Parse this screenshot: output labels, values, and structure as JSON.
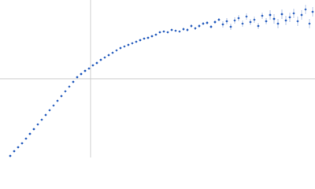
{
  "chart_data": {
    "type": "scatter",
    "color": "#3b6cc4",
    "error_color": "#a8bde3",
    "xlim": [
      -115,
      285
    ],
    "ylim": [
      -100,
      100
    ],
    "x": [
      -102,
      -97,
      -92,
      -87,
      -82,
      -77,
      -72,
      -67,
      -62,
      -57,
      -52,
      -47,
      -42,
      -37,
      -32,
      -27,
      -22,
      -17,
      -12,
      -7,
      -2,
      3,
      8,
      13,
      18,
      23,
      28,
      33,
      38,
      43,
      48,
      53,
      58,
      63,
      68,
      73,
      78,
      83,
      88,
      93,
      98,
      103,
      108,
      113,
      118,
      123,
      128,
      133,
      138,
      143,
      148,
      153,
      158,
      163,
      168,
      173,
      178,
      183,
      188,
      193,
      198,
      203,
      208,
      213,
      218,
      223,
      228,
      233,
      238,
      243,
      248,
      253,
      258,
      263,
      268,
      273,
      278,
      282
    ],
    "values": [
      -98,
      -92,
      -87,
      -82,
      -76,
      -70,
      -64,
      -58,
      -52,
      -46,
      -40,
      -34,
      -28,
      -22,
      -16,
      -10,
      -4,
      2,
      6,
      10,
      13,
      17,
      20,
      24,
      27,
      30,
      33,
      36,
      39,
      41,
      43,
      45,
      47,
      49,
      51,
      52,
      54,
      56,
      59,
      60,
      59,
      62,
      61,
      60,
      63,
      62,
      67,
      64,
      67,
      70,
      71,
      66,
      72,
      75,
      69,
      73,
      66,
      74,
      77,
      70,
      79,
      72,
      75,
      67,
      80,
      73,
      81,
      76,
      70,
      82,
      74,
      78,
      83,
      73,
      81,
      88,
      70,
      85
    ],
    "errors": [
      0.5,
      0.5,
      0.5,
      0.5,
      0.5,
      0.5,
      0.5,
      0.5,
      0.5,
      0.5,
      0.5,
      0.5,
      0.5,
      0.5,
      0.5,
      0.5,
      0.5,
      0.5,
      0.5,
      0.5,
      0.5,
      0.5,
      0.5,
      0.5,
      0.5,
      0.5,
      0.5,
      0.5,
      0.5,
      0.5,
      0.5,
      0.5,
      0.5,
      0.5,
      1,
      1,
      1,
      1,
      1,
      1,
      1,
      1,
      1,
      1,
      2,
      2,
      2,
      2,
      2,
      2,
      2,
      2,
      2,
      2,
      4,
      4,
      4,
      4,
      4,
      4,
      4,
      4,
      4,
      4,
      4,
      4,
      6,
      6,
      6,
      6,
      6,
      6,
      6,
      6,
      6,
      6,
      6,
      6
    ]
  }
}
